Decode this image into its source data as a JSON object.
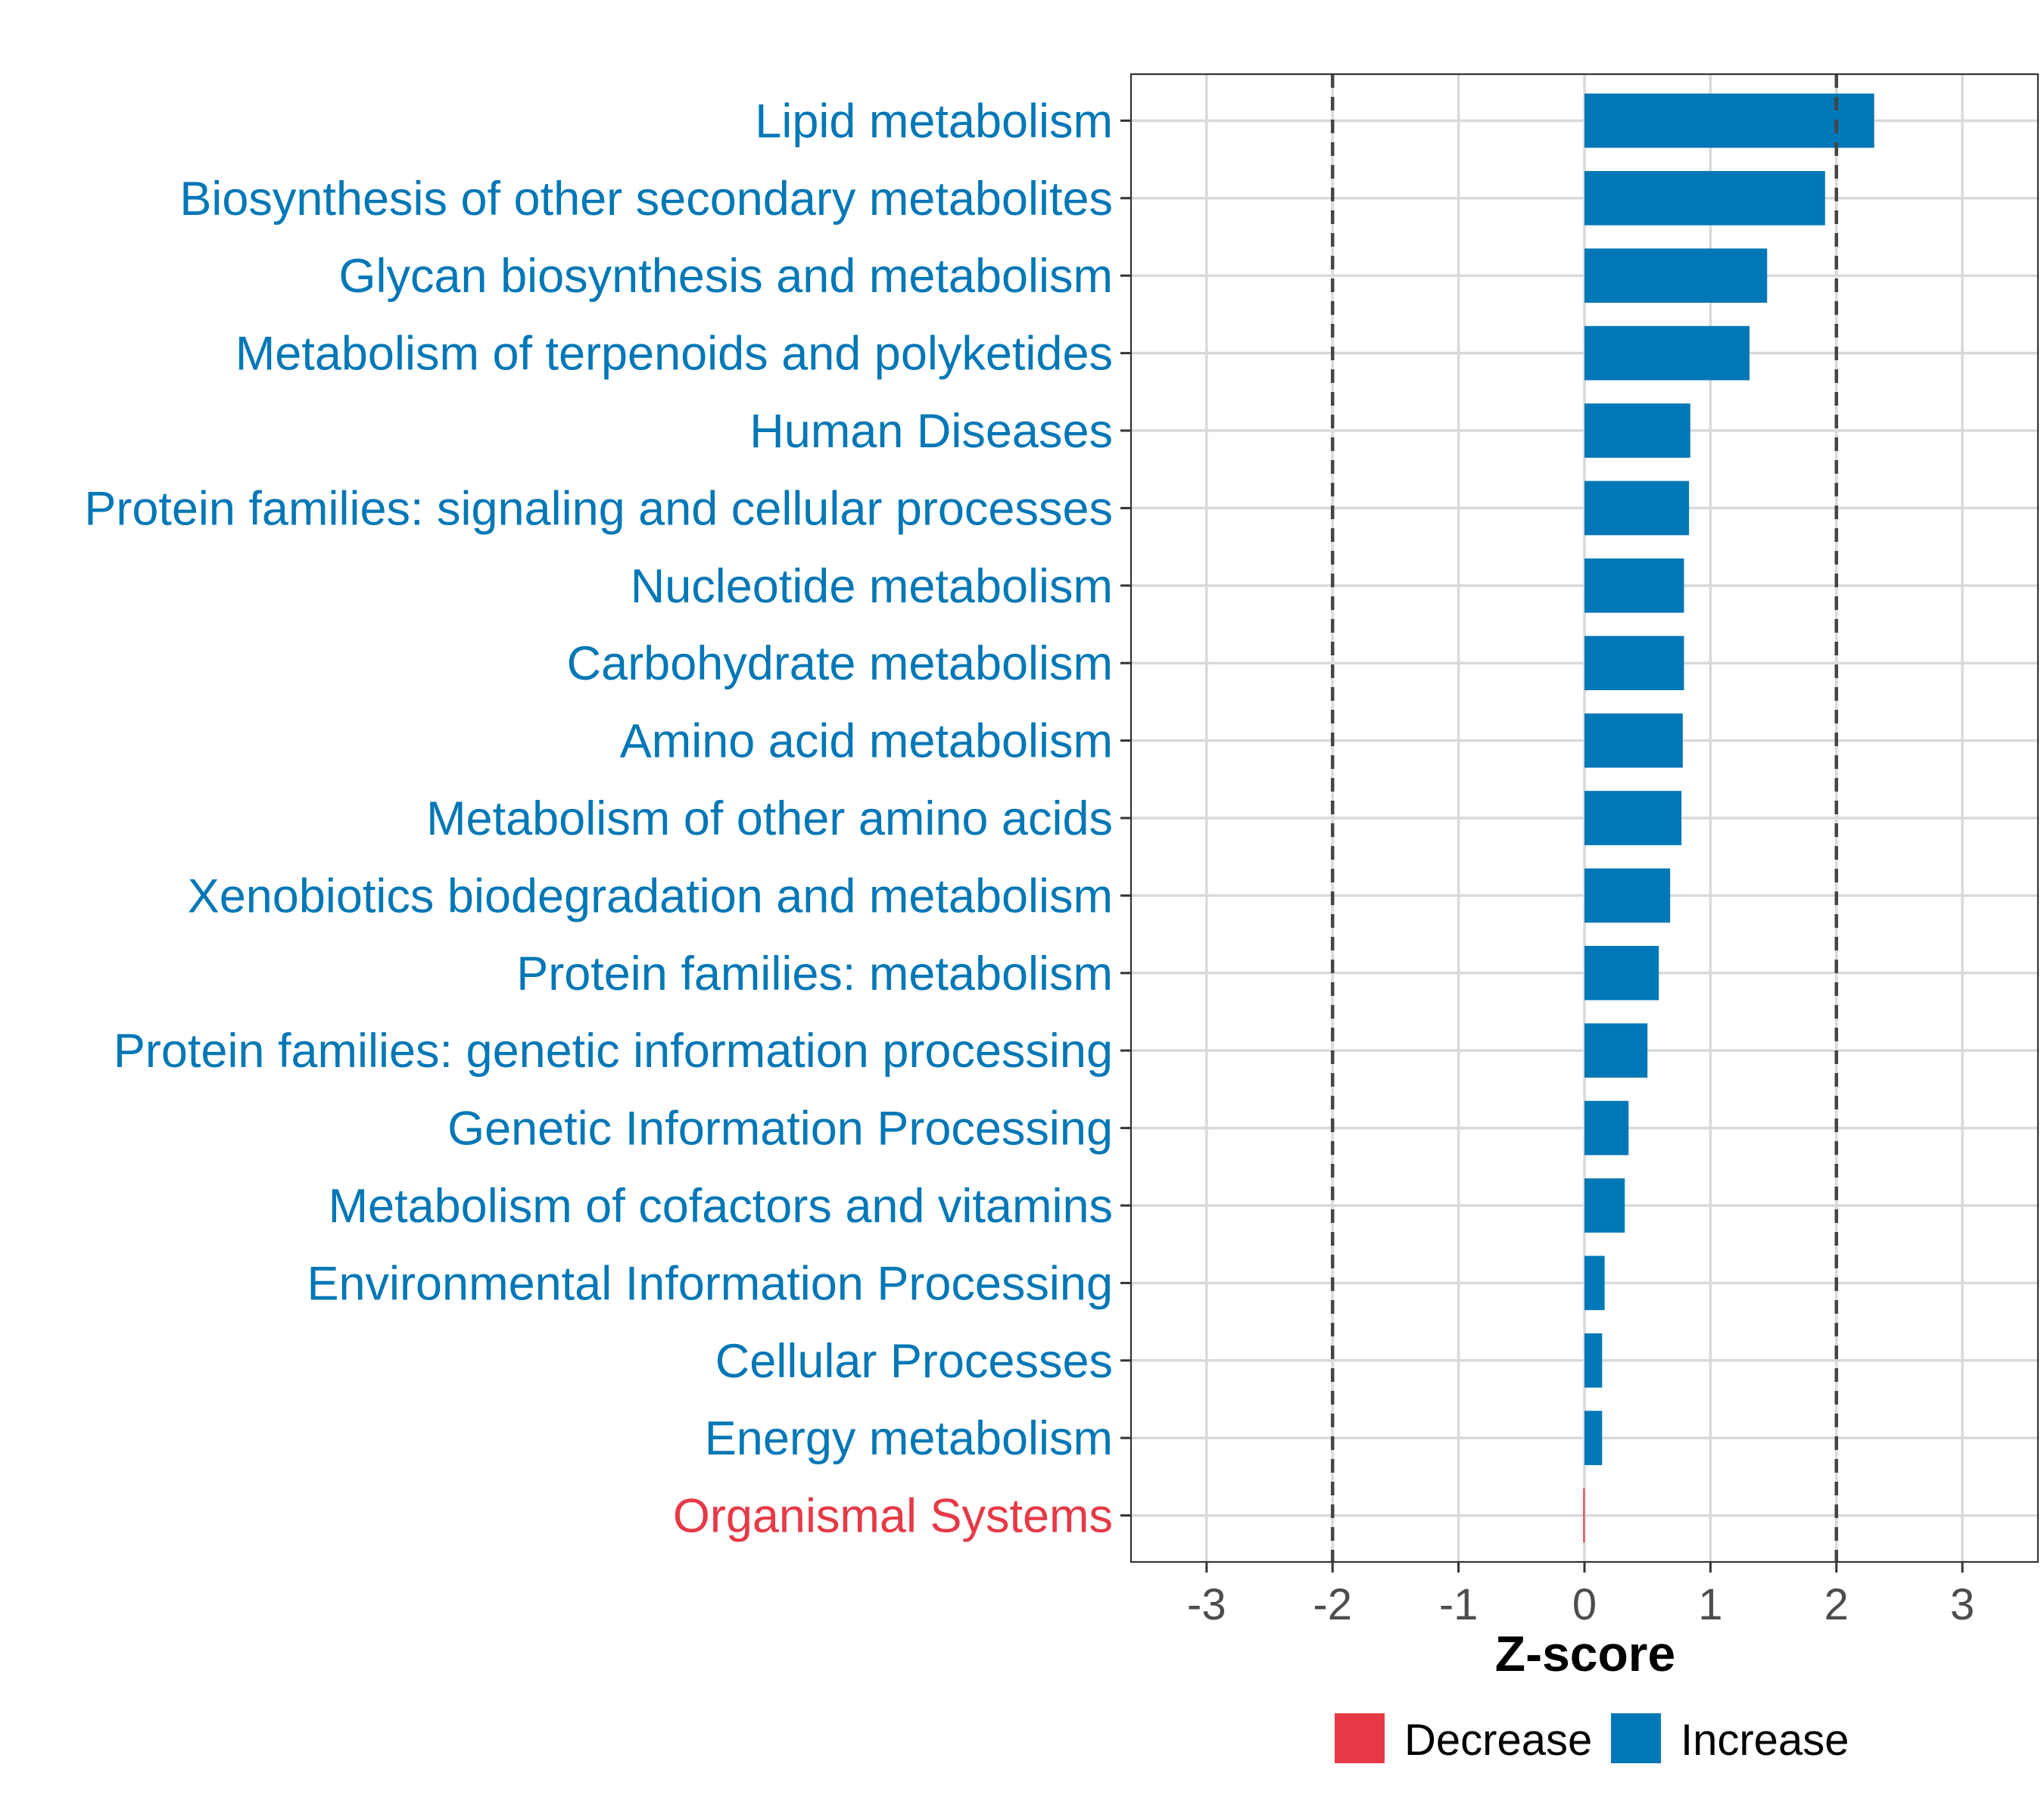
{
  "chart_data": {
    "type": "bar",
    "orientation": "horizontal",
    "xlabel": "Z-score",
    "xlim": [
      -3.6,
      3.6
    ],
    "xticks": [
      "-3",
      "-2",
      "-1",
      "0",
      "1",
      "2",
      "3"
    ],
    "reference_lines": [
      -2,
      2
    ],
    "grid": true,
    "legend_position": "bottom",
    "colors": {
      "Decrease": "#e63946",
      "Increase": "#0077b6"
    },
    "legend": [
      {
        "label": "Decrease",
        "color": "#e63946"
      },
      {
        "label": "Increase",
        "color": "#0077b6"
      }
    ],
    "categories": [
      "Lipid metabolism",
      "Biosynthesis of other secondary metabolites",
      "Glycan biosynthesis and metabolism",
      "Metabolism of terpenoids and polyketides",
      "Human Diseases",
      "Protein families: signaling and cellular processes",
      "Nucleotide metabolism",
      "Carbohydrate metabolism",
      "Amino acid metabolism",
      "Metabolism of other amino acids",
      "Xenobiotics biodegradation and metabolism",
      "Protein families: metabolism",
      "Protein families: genetic information processing",
      "Genetic Information Processing",
      "Metabolism of cofactors and vitamins",
      "Environmental Information Processing",
      "Cellular Processes",
      "Energy metabolism",
      "Organismal Systems"
    ],
    "values": [
      2.3,
      1.91,
      1.45,
      1.31,
      0.84,
      0.83,
      0.79,
      0.79,
      0.78,
      0.77,
      0.68,
      0.59,
      0.5,
      0.35,
      0.32,
      0.16,
      0.14,
      0.14,
      -0.01
    ],
    "groups": [
      "Increase",
      "Increase",
      "Increase",
      "Increase",
      "Increase",
      "Increase",
      "Increase",
      "Increase",
      "Increase",
      "Increase",
      "Increase",
      "Increase",
      "Increase",
      "Increase",
      "Increase",
      "Increase",
      "Increase",
      "Increase",
      "Decrease"
    ]
  }
}
